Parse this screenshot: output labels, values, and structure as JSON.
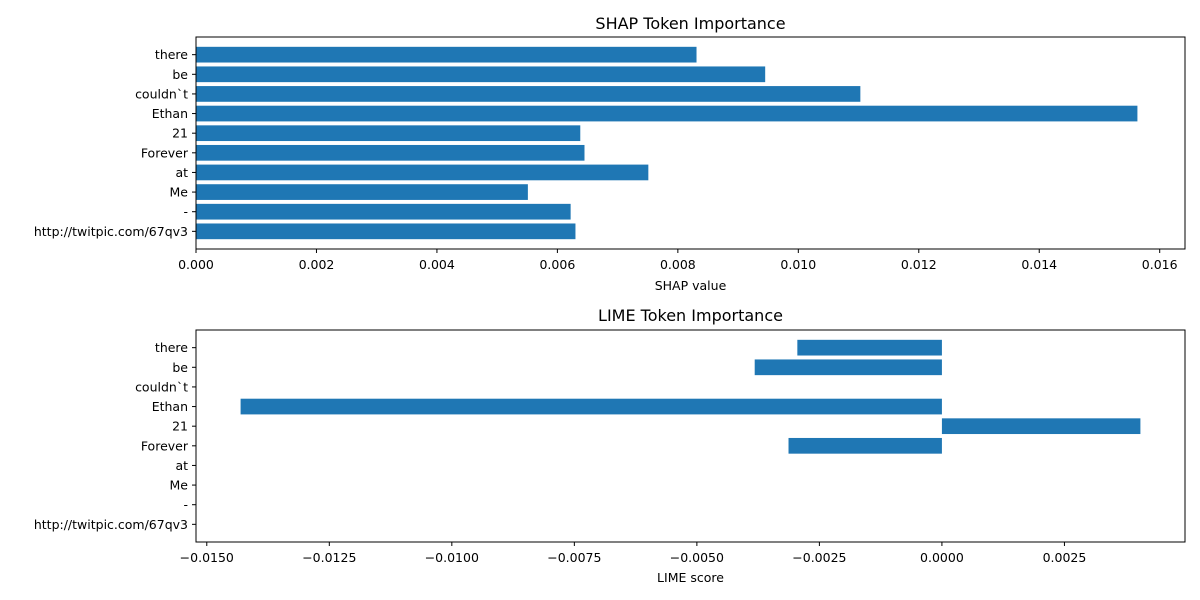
{
  "chart_data": [
    {
      "type": "bar",
      "orientation": "horizontal",
      "title": "SHAP Token Importance",
      "xlabel": "SHAP value",
      "ylabel": "",
      "categories": [
        "there",
        "be",
        "couldn`t",
        "Ethan",
        "21",
        "Forever",
        "at",
        "Me",
        "-",
        "http://twitpic.com/67qv3"
      ],
      "values": [
        0.00831,
        0.00945,
        0.01103,
        0.01563,
        0.00638,
        0.00645,
        0.00751,
        0.00551,
        0.00622,
        0.0063
      ],
      "xlim": [
        0,
        0.01642
      ],
      "xticks": [
        0.0,
        0.002,
        0.004,
        0.006,
        0.008,
        0.01,
        0.012,
        0.014,
        0.016
      ],
      "xtick_labels": [
        "0.000",
        "0.002",
        "0.004",
        "0.006",
        "0.008",
        "0.010",
        "0.012",
        "0.014",
        "0.016"
      ],
      "grid": false,
      "color": "#1f77b4"
    },
    {
      "type": "bar",
      "orientation": "horizontal",
      "title": "LIME Token Importance",
      "xlabel": "LIME score",
      "ylabel": "",
      "categories": [
        "there",
        "be",
        "couldn`t",
        "Ethan",
        "21",
        "Forever",
        "at",
        "Me",
        "-",
        "http://twitpic.com/67qv3"
      ],
      "values": [
        -0.00295,
        -0.00382,
        0,
        -0.01431,
        0.00405,
        -0.00313,
        0,
        0,
        0,
        0
      ],
      "xlim": [
        -0.01522,
        0.00496
      ],
      "xticks": [
        -0.015,
        -0.0125,
        -0.01,
        -0.0075,
        -0.005,
        -0.0025,
        0.0,
        0.0025
      ],
      "xtick_labels": [
        "−0.0150",
        "−0.0125",
        "−0.0100",
        "−0.0075",
        "−0.0050",
        "−0.0025",
        "0.0000",
        "0.0025"
      ],
      "grid": false,
      "color": "#1f77b4"
    }
  ]
}
